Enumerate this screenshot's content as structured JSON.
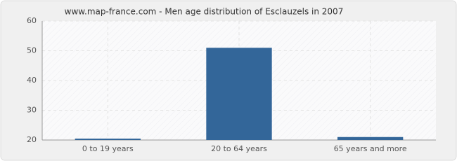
{
  "chart_data": {
    "type": "bar",
    "title": "www.map-france.com - Men age distribution of Esclauzels in 2007",
    "categories": [
      "0 to 19 years",
      "20 to 64 years",
      "65 years and more"
    ],
    "values": [
      20,
      51,
      21
    ],
    "color": "#336699",
    "ylim": [
      20,
      60
    ],
    "yticks": [
      20,
      30,
      40,
      50,
      60
    ],
    "grid": true
  }
}
